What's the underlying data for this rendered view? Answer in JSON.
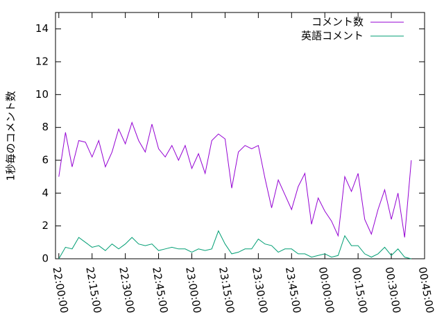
{
  "chart_data": {
    "type": "line",
    "ylabel": "1秒毎のコメント数",
    "x": [
      "22:00:00",
      "22:03:00",
      "22:06:00",
      "22:09:00",
      "22:12:00",
      "22:15:00",
      "22:18:00",
      "22:21:00",
      "22:24:00",
      "22:27:00",
      "22:30:00",
      "22:33:00",
      "22:36:00",
      "22:39:00",
      "22:42:00",
      "22:45:00",
      "22:48:00",
      "22:51:00",
      "22:54:00",
      "22:57:00",
      "23:00:00",
      "23:03:00",
      "23:06:00",
      "23:09:00",
      "23:12:00",
      "23:15:00",
      "23:18:00",
      "23:21:00",
      "23:24:00",
      "23:27:00",
      "23:30:00",
      "23:33:00",
      "23:36:00",
      "23:39:00",
      "23:42:00",
      "23:45:00",
      "23:48:00",
      "23:51:00",
      "23:54:00",
      "23:57:00",
      "00:00:00",
      "00:03:00",
      "00:06:00",
      "00:09:00",
      "00:12:00",
      "00:15:00",
      "00:18:00",
      "00:21:00",
      "00:24:00",
      "00:27:00",
      "00:30:00",
      "00:33:00",
      "00:36:00",
      "00:39:00"
    ],
    "series": [
      {
        "name": "コメント数",
        "color": "#9400d3",
        "values": [
          5.0,
          7.7,
          5.6,
          7.2,
          7.1,
          6.2,
          7.2,
          5.6,
          6.5,
          7.9,
          7.0,
          8.3,
          7.2,
          6.5,
          8.2,
          6.7,
          6.2,
          6.9,
          6.0,
          6.9,
          5.5,
          6.4,
          5.2,
          7.2,
          7.6,
          7.3,
          4.3,
          6.5,
          6.9,
          6.7,
          6.9,
          4.9,
          3.1,
          4.8,
          3.9,
          3.0,
          4.4,
          5.2,
          2.1,
          3.7,
          2.9,
          2.3,
          1.4,
          5.0,
          4.1,
          5.2,
          2.4,
          1.5,
          3.0,
          4.2,
          2.4,
          4.0,
          1.3,
          6.0
        ]
      },
      {
        "name": "英語コメント",
        "color": "#009e73",
        "values": [
          0.0,
          0.7,
          0.6,
          1.3,
          1.0,
          0.7,
          0.8,
          0.5,
          0.9,
          0.6,
          0.9,
          1.3,
          0.9,
          0.8,
          0.9,
          0.5,
          0.6,
          0.7,
          0.6,
          0.6,
          0.4,
          0.6,
          0.5,
          0.6,
          1.7,
          0.9,
          0.3,
          0.4,
          0.6,
          0.6,
          1.2,
          0.9,
          0.8,
          0.4,
          0.6,
          0.6,
          0.3,
          0.3,
          0.1,
          0.2,
          0.3,
          0.1,
          0.2,
          1.4,
          0.8,
          0.8,
          0.3,
          0.1,
          0.3,
          0.7,
          0.2,
          0.6,
          0.1,
          0.0
        ]
      }
    ],
    "xlim": [
      "21:58:30",
      "00:45:00"
    ],
    "xticks": [
      "22:00:00",
      "22:15:00",
      "22:30:00",
      "22:45:00",
      "23:00:00",
      "23:15:00",
      "23:30:00",
      "23:45:00",
      "00:00:00",
      "00:15:00",
      "00:30:00",
      "00:45:00"
    ],
    "ylim": [
      0,
      15
    ],
    "yticks": [
      0,
      2,
      4,
      6,
      8,
      10,
      12,
      14
    ],
    "legend": "top-right"
  }
}
